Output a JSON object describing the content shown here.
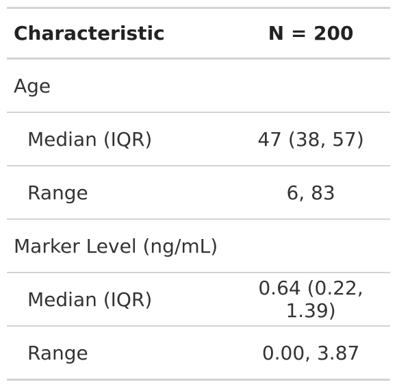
{
  "table": {
    "header": {
      "characteristic": "Characteristic",
      "n": "N = 200"
    },
    "rows": [
      {
        "type": "group",
        "label": "Age",
        "value": ""
      },
      {
        "type": "stat",
        "label": "Median (IQR)",
        "value": "47 (38, 57)"
      },
      {
        "type": "stat",
        "label": "Range",
        "value": "6, 83"
      },
      {
        "type": "group",
        "label": "Marker Level (ng/mL)",
        "value": ""
      },
      {
        "type": "stat",
        "label": "Median (IQR)",
        "value": "0.64 (0.22, 1.39)"
      },
      {
        "type": "stat",
        "label": "Range",
        "value": "0.00, 3.87"
      }
    ]
  }
}
